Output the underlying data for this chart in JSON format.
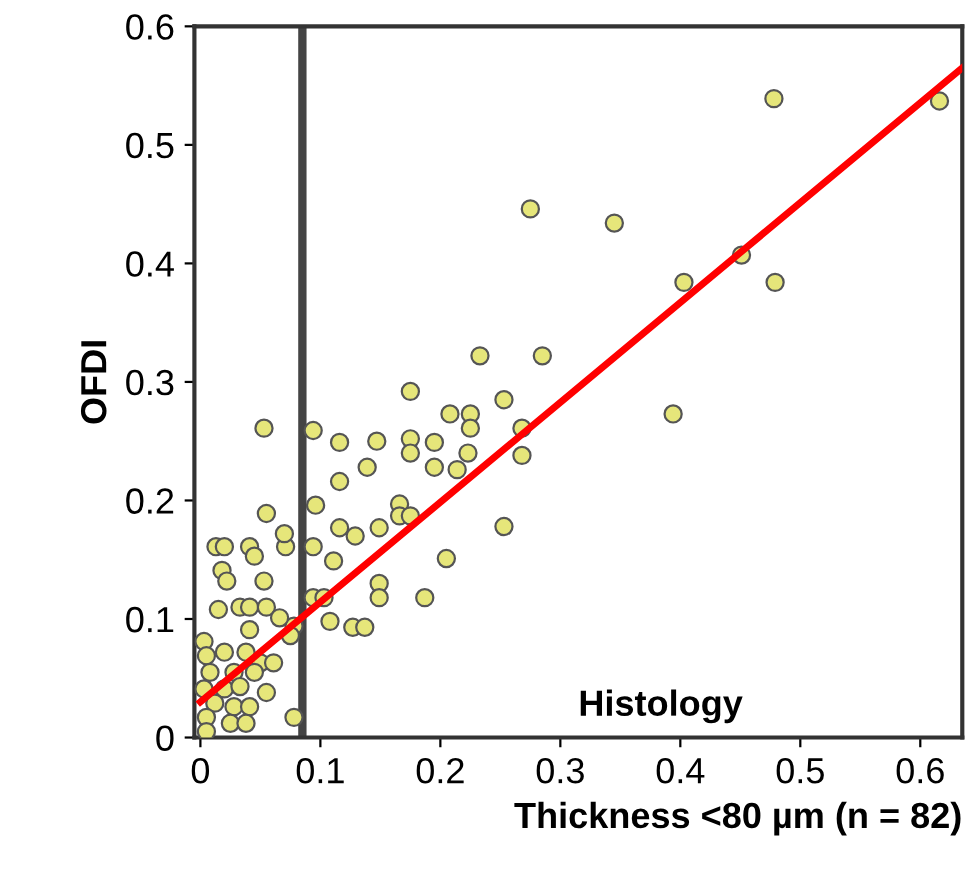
{
  "chart_data": {
    "type": "scatter",
    "xlabel": "Thickness <80 µm (n = 82)",
    "ylabel": "OFDI",
    "annotations": [
      "Histology"
    ],
    "xlim": [
      -0.005,
      0.635
    ],
    "ylim": [
      0,
      0.6
    ],
    "xticks": [
      0,
      0.1,
      0.2,
      0.3,
      0.4,
      0.5,
      0.6
    ],
    "yticks": [
      0,
      0.1,
      0.2,
      0.3,
      0.4,
      0.5,
      0.6
    ],
    "grid": false,
    "marker": "circle",
    "ref_lines": [
      {
        "axis": "x",
        "value": 0.085,
        "color": "#444444"
      }
    ],
    "series": [
      {
        "color": "#e6e67a",
        "x": [
          0.478,
          0.616,
          0.345,
          0.451,
          0.403,
          0.479,
          0.394,
          0.275,
          0.233,
          0.285,
          0.175,
          0.208,
          0.225,
          0.253,
          0.225,
          0.268,
          0.094,
          0.116,
          0.147,
          0.175,
          0.175,
          0.195,
          0.223,
          0.268,
          0.139,
          0.195,
          0.214,
          0.116,
          0.096,
          0.166,
          0.166,
          0.175,
          0.116,
          0.149,
          0.129,
          0.253,
          0.071,
          0.094,
          0.111,
          0.205,
          0.149,
          0.149,
          0.094,
          0.103,
          0.187,
          0.108,
          0.078,
          0.127,
          0.137,
          0.053,
          0.055,
          0.07,
          0.013,
          0.02,
          0.041,
          0.045,
          0.018,
          0.022,
          0.053,
          0.015,
          0.033,
          0.041,
          0.055,
          0.066,
          0.041,
          0.075,
          0.003,
          0.005,
          0.02,
          0.038,
          0.05,
          0.061,
          0.008,
          0.028,
          0.045,
          0.003,
          0.02,
          0.033,
          0.055,
          0.012,
          0.028,
          0.041,
          0.005,
          0.025,
          0.038,
          0.005,
          0.078
        ],
        "values": [
          0.539,
          0.537,
          0.434,
          0.407,
          0.384,
          0.384,
          0.273,
          0.446,
          0.322,
          0.322,
          0.292,
          0.273,
          0.273,
          0.285,
          0.261,
          0.261,
          0.259,
          0.249,
          0.25,
          0.252,
          0.24,
          0.249,
          0.24,
          0.238,
          0.228,
          0.228,
          0.226,
          0.216,
          0.196,
          0.197,
          0.187,
          0.187,
          0.177,
          0.177,
          0.17,
          0.178,
          0.161,
          0.161,
          0.149,
          0.151,
          0.13,
          0.118,
          0.118,
          0.118,
          0.118,
          0.098,
          0.094,
          0.093,
          0.093,
          0.261,
          0.189,
          0.172,
          0.161,
          0.161,
          0.161,
          0.153,
          0.141,
          0.132,
          0.132,
          0.108,
          0.11,
          0.11,
          0.11,
          0.101,
          0.091,
          0.086,
          0.081,
          0.069,
          0.072,
          0.072,
          0.063,
          0.063,
          0.055,
          0.055,
          0.055,
          0.041,
          0.041,
          0.043,
          0.038,
          0.029,
          0.026,
          0.026,
          0.017,
          0.012,
          0.012,
          0.005,
          0.017
        ]
      },
      {
        "type": "line",
        "color": "#ff0000",
        "marker": "none",
        "x": [
          0,
          0.635
        ],
        "values": [
          0.03,
          0.565
        ]
      }
    ]
  }
}
